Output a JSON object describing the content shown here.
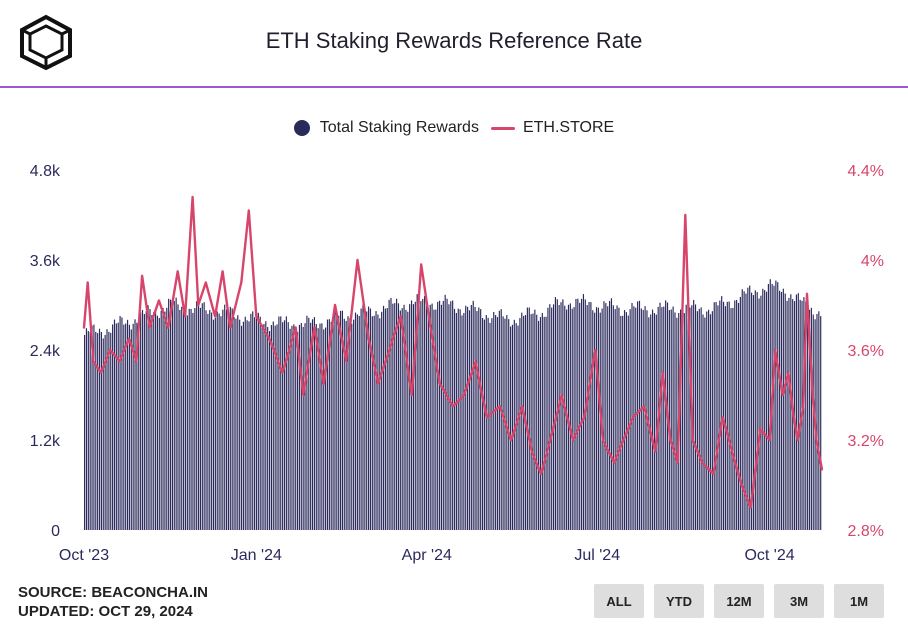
{
  "header": {
    "title": "ETH Staking Rewards Reference Rate"
  },
  "legend": {
    "bars_label": "Total Staking Rewards",
    "line_label": "ETH.STORE"
  },
  "footer": {
    "source": "SOURCE: BEACONCHA.IN",
    "updated": "UPDATED: OCT 29, 2024"
  },
  "range_buttons": [
    "ALL",
    "YTD",
    "12M",
    "3M",
    "1M"
  ],
  "colors": {
    "bars": "#2b2a5c",
    "line": "#d8456b",
    "accent_rule": "#9b59d0"
  },
  "chart_data": {
    "type": "bar+line",
    "title": "ETH Staking Rewards Reference Rate",
    "x_ticks": [
      "Oct '23",
      "Jan '24",
      "Apr '24",
      "Jul '24",
      "Oct '24"
    ],
    "x_tick_dates": [
      "2023-10-01",
      "2024-01-01",
      "2024-04-01",
      "2024-07-01",
      "2024-10-01"
    ],
    "x_range": [
      "2023-10-01",
      "2024-10-29"
    ],
    "y_left": {
      "ticks": [
        "0",
        "1.2k",
        "2.4k",
        "3.6k",
        "4.8k"
      ],
      "ylim": [
        0,
        4800
      ]
    },
    "y_right": {
      "ticks": [
        "2.8%",
        "3.2%",
        "3.6%",
        "4%",
        "4.4%"
      ],
      "ylim": [
        2.8,
        4.4
      ]
    },
    "legend_position": "top-center",
    "series": [
      {
        "name": "Total Staking Rewards",
        "kind": "bar",
        "axis": "left",
        "anchors": [
          [
            "2023-10-01",
            2600
          ],
          [
            "2023-10-15",
            2700
          ],
          [
            "2023-11-01",
            2850
          ],
          [
            "2023-11-15",
            3000
          ],
          [
            "2023-12-01",
            2950
          ],
          [
            "2023-12-15",
            2900
          ],
          [
            "2024-01-01",
            2800
          ],
          [
            "2024-01-15",
            2750
          ],
          [
            "2024-02-01",
            2750
          ],
          [
            "2024-02-15",
            2850
          ],
          [
            "2024-03-01",
            2900
          ],
          [
            "2024-03-15",
            3000
          ],
          [
            "2024-04-01",
            3050
          ],
          [
            "2024-04-15",
            3000
          ],
          [
            "2024-05-01",
            2900
          ],
          [
            "2024-05-15",
            2800
          ],
          [
            "2024-06-01",
            2900
          ],
          [
            "2024-06-15",
            3050
          ],
          [
            "2024-07-01",
            3000
          ],
          [
            "2024-07-15",
            2950
          ],
          [
            "2024-08-01",
            2950
          ],
          [
            "2024-08-15",
            2950
          ],
          [
            "2024-09-01",
            2950
          ],
          [
            "2024-09-15",
            3100
          ],
          [
            "2024-10-01",
            3250
          ],
          [
            "2024-10-10",
            3200
          ],
          [
            "2024-10-20",
            3000
          ],
          [
            "2024-10-29",
            2900
          ]
        ]
      },
      {
        "name": "ETH.STORE",
        "kind": "line",
        "axis": "right",
        "anchors": [
          [
            "2023-10-01",
            3.7
          ],
          [
            "2023-10-03",
            3.9
          ],
          [
            "2023-10-06",
            3.55
          ],
          [
            "2023-10-10",
            3.5
          ],
          [
            "2023-10-15",
            3.6
          ],
          [
            "2023-10-20",
            3.55
          ],
          [
            "2023-10-25",
            3.65
          ],
          [
            "2023-10-29",
            3.55
          ],
          [
            "2023-11-01",
            3.93
          ],
          [
            "2023-11-05",
            3.7
          ],
          [
            "2023-11-10",
            3.82
          ],
          [
            "2023-11-15",
            3.7
          ],
          [
            "2023-11-20",
            3.95
          ],
          [
            "2023-11-24",
            3.75
          ],
          [
            "2023-11-28",
            4.28
          ],
          [
            "2023-12-01",
            3.8
          ],
          [
            "2023-12-05",
            3.9
          ],
          [
            "2023-12-10",
            3.75
          ],
          [
            "2023-12-14",
            3.95
          ],
          [
            "2023-12-18",
            3.7
          ],
          [
            "2023-12-24",
            3.9
          ],
          [
            "2023-12-28",
            4.22
          ],
          [
            "2024-01-01",
            3.75
          ],
          [
            "2024-01-08",
            3.65
          ],
          [
            "2024-01-15",
            3.5
          ],
          [
            "2024-01-22",
            3.7
          ],
          [
            "2024-01-26",
            3.4
          ],
          [
            "2024-02-01",
            3.7
          ],
          [
            "2024-02-06",
            3.45
          ],
          [
            "2024-02-12",
            3.8
          ],
          [
            "2024-02-18",
            3.55
          ],
          [
            "2024-02-24",
            4.0
          ],
          [
            "2024-03-01",
            3.65
          ],
          [
            "2024-03-06",
            3.45
          ],
          [
            "2024-03-12",
            3.6
          ],
          [
            "2024-03-18",
            3.75
          ],
          [
            "2024-03-24",
            3.4
          ],
          [
            "2024-03-29",
            3.98
          ],
          [
            "2024-04-03",
            3.7
          ],
          [
            "2024-04-08",
            3.45
          ],
          [
            "2024-04-15",
            3.35
          ],
          [
            "2024-04-21",
            3.4
          ],
          [
            "2024-04-27",
            3.55
          ],
          [
            "2024-05-03",
            3.3
          ],
          [
            "2024-05-10",
            3.35
          ],
          [
            "2024-05-16",
            3.2
          ],
          [
            "2024-05-22",
            3.35
          ],
          [
            "2024-05-27",
            3.15
          ],
          [
            "2024-06-01",
            3.05
          ],
          [
            "2024-06-06",
            3.2
          ],
          [
            "2024-06-12",
            3.4
          ],
          [
            "2024-06-18",
            3.2
          ],
          [
            "2024-06-24",
            3.3
          ],
          [
            "2024-06-30",
            3.6
          ],
          [
            "2024-07-04",
            3.2
          ],
          [
            "2024-07-10",
            3.1
          ],
          [
            "2024-07-15",
            3.2
          ],
          [
            "2024-07-20",
            3.3
          ],
          [
            "2024-07-26",
            3.35
          ],
          [
            "2024-08-01",
            3.15
          ],
          [
            "2024-08-05",
            3.5
          ],
          [
            "2024-08-09",
            3.2
          ],
          [
            "2024-08-13",
            3.1
          ],
          [
            "2024-08-17",
            4.2
          ],
          [
            "2024-08-21",
            3.2
          ],
          [
            "2024-08-26",
            3.1
          ],
          [
            "2024-09-01",
            3.05
          ],
          [
            "2024-09-06",
            3.3
          ],
          [
            "2024-09-11",
            3.15
          ],
          [
            "2024-09-16",
            3.0
          ],
          [
            "2024-09-21",
            2.9
          ],
          [
            "2024-09-26",
            3.25
          ],
          [
            "2024-10-01",
            3.2
          ],
          [
            "2024-10-04",
            3.6
          ],
          [
            "2024-10-08",
            3.4
          ],
          [
            "2024-10-11",
            3.5
          ],
          [
            "2024-10-14",
            3.3
          ],
          [
            "2024-10-16",
            3.2
          ],
          [
            "2024-10-19",
            3.35
          ],
          [
            "2024-10-21",
            3.85
          ],
          [
            "2024-10-24",
            3.4
          ],
          [
            "2024-10-26",
            3.2
          ],
          [
            "2024-10-29",
            3.07
          ]
        ]
      }
    ]
  }
}
